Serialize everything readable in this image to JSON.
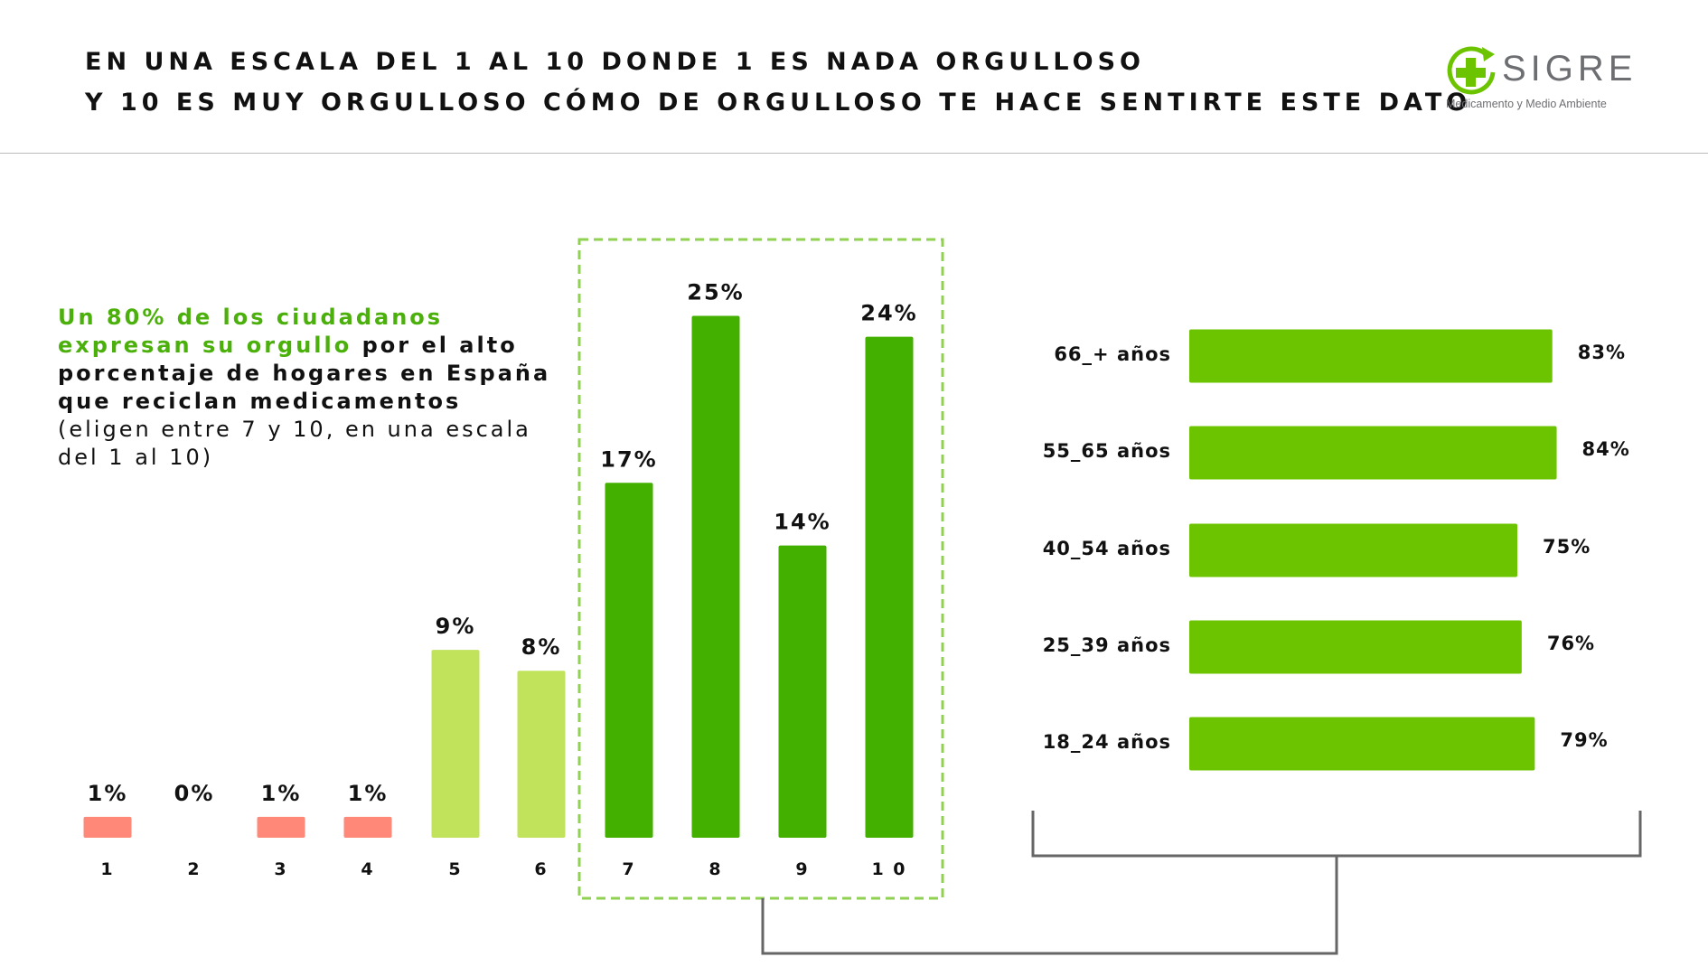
{
  "header": {
    "title_line1": "EN UNA ESCALA DEL 1 AL 10 DONDE 1 ES NADA ORGULLOSO",
    "title_line2": "Y 10 ES MUY ORGULLOSO CÓMO DE ORGULLOSO TE HACE SENTIRTE ESTE DATO"
  },
  "logo": {
    "name": "SIGRE",
    "tagline": "Medicamento y Medio Ambiente"
  },
  "callout": {
    "green": "Un 80% de los ciudadanos expresan su orgullo",
    "bold": " por el alto porcentaje de hogares en España que reciclan medicamentos",
    "normal": " (eligen entre 7 y 10, en una escala del 1 al 10)"
  },
  "colors": {
    "low": "#ff8878",
    "mid": "#c0e35b",
    "high": "#43b000",
    "age_bar": "#6cc400",
    "accent_text": "#4cb00c",
    "dashed_box": "#8fd150"
  },
  "chart_data": [
    {
      "type": "bar",
      "categories": [
        "1",
        "2",
        "3",
        "4",
        "5",
        "6",
        "7",
        "8",
        "9",
        "1 0"
      ],
      "values": [
        1,
        0,
        1,
        1,
        9,
        8,
        17,
        25,
        14,
        24
      ],
      "labels": [
        "1%",
        "0%",
        "1%",
        "1%",
        "9%",
        "8%",
        "17%",
        "25%",
        "14%",
        "24%"
      ],
      "bar_colors": [
        "low",
        "low",
        "low",
        "low",
        "mid",
        "mid",
        "high",
        "high",
        "high",
        "high"
      ],
      "highlighted_categories": [
        "7",
        "8",
        "9",
        "1 0"
      ]
    },
    {
      "type": "bar",
      "orientation": "horizontal",
      "categories": [
        "66_+ años",
        "55_65 años",
        "40_54 años",
        "25_39 años",
        "18_24 años"
      ],
      "values": [
        83,
        84,
        75,
        76,
        79
      ],
      "labels": [
        "83%",
        "84%",
        "75%",
        "76%",
        "79%"
      ]
    }
  ]
}
